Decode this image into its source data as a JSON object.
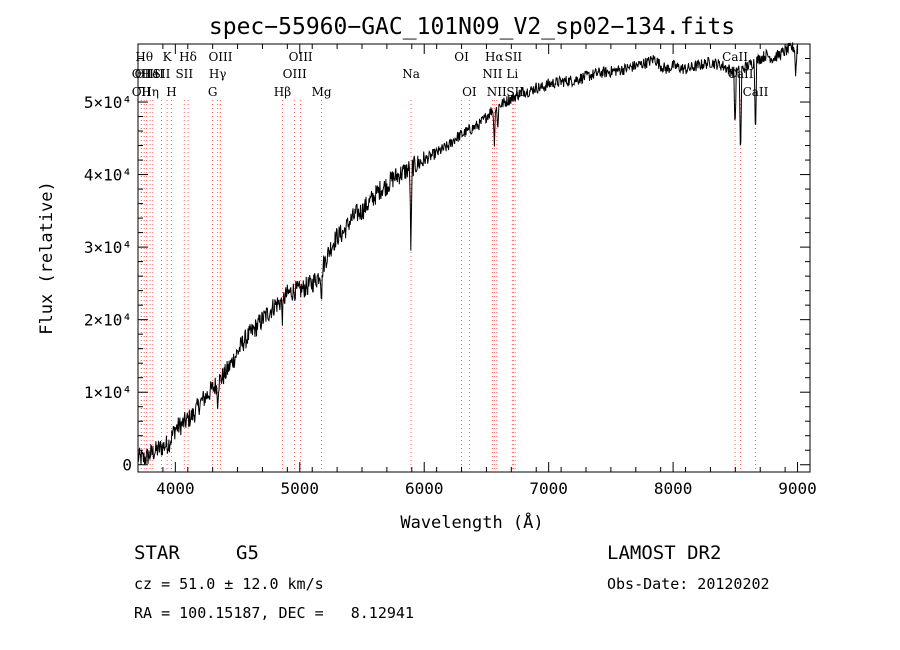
{
  "chart_data": {
    "type": "line",
    "title": "spec−55960−GAC_101N09_V2_sp02−134.fits",
    "xlabel": "Wavelength (Å)",
    "ylabel": "Flux (relative)",
    "xlim": [
      3700,
      9100
    ],
    "ylim": [
      -1000,
      58000
    ],
    "x_ticks": [
      4000,
      5000,
      6000,
      7000,
      8000,
      9000
    ],
    "y_ticks": [
      0,
      10000,
      20000,
      30000,
      40000,
      50000
    ],
    "y_tick_labels": [
      "0",
      "1×10⁴",
      "2×10⁴",
      "3×10⁴",
      "4×10⁴",
      "5×10⁴"
    ],
    "grid": false,
    "line_color": "#000000",
    "marker_color": "#ff6060",
    "series": [
      {
        "x": [
          3700,
          3750,
          3800,
          3850,
          3900,
          3950,
          4000,
          4050,
          4100,
          4150,
          4200,
          4250,
          4300,
          4350,
          4400,
          4450,
          4500,
          4550,
          4600,
          4650,
          4700,
          4750,
          4800,
          4850,
          4900,
          4950,
          5000,
          5050,
          5100,
          5150,
          5200,
          5250,
          5300,
          5350,
          5400,
          5450,
          5500,
          5550,
          5600,
          5650,
          5700,
          5750,
          5800,
          5850,
          5900,
          5950,
          6000,
          6050,
          6100,
          6150,
          6200,
          6250,
          6300,
          6350,
          6400,
          6450,
          6500,
          6550,
          6600,
          6650,
          6700,
          6750,
          6800,
          6850,
          6900,
          6950,
          7000,
          7100,
          7200,
          7300,
          7400,
          7500,
          7600,
          7700,
          7800,
          7850,
          7900,
          7950,
          8000,
          8100,
          8200,
          8300,
          8400,
          8450,
          8500,
          8550,
          8600,
          8650,
          8700,
          8750,
          8800,
          8850,
          8900,
          8950,
          9000
        ],
        "y": [
          1000,
          800,
          1500,
          2000,
          2500,
          3000,
          5000,
          5500,
          6200,
          7000,
          8500,
          9500,
          10500,
          11500,
          12500,
          14000,
          15500,
          17000,
          18000,
          19000,
          20000,
          21000,
          22000,
          22500,
          23500,
          24000,
          24000,
          24500,
          25000,
          26000,
          28000,
          30000,
          31500,
          32000,
          33500,
          34500,
          35000,
          36000,
          37000,
          38000,
          38500,
          39500,
          40000,
          40500,
          41000,
          41500,
          42000,
          42500,
          43000,
          43500,
          44000,
          45000,
          45500,
          46000,
          46500,
          47000,
          48000,
          49000,
          49500,
          50000,
          50500,
          51000,
          51500,
          51500,
          52000,
          52000,
          52500,
          52800,
          53000,
          53500,
          54000,
          54200,
          54500,
          55000,
          55500,
          56000,
          55000,
          54500,
          55000,
          54500,
          55000,
          55500,
          55000,
          54500,
          54000,
          54500,
          55000,
          55500,
          56000,
          56500,
          56000,
          56500,
          57000,
          57500,
          57500
        ]
      }
    ],
    "absorption_dips": [
      {
        "x": 5893,
        "depth": 12000
      },
      {
        "x": 5175,
        "depth": 4000
      },
      {
        "x": 4861,
        "depth": 2500
      },
      {
        "x": 4340,
        "depth": 2500
      },
      {
        "x": 6563,
        "depth": 5000
      },
      {
        "x": 6590,
        "depth": 3000
      },
      {
        "x": 8498,
        "depth": 8000
      },
      {
        "x": 8542,
        "depth": 13000
      },
      {
        "x": 8662,
        "depth": 10000
      },
      {
        "x": 8985,
        "depth": 4000
      }
    ],
    "line_markers": [
      {
        "x": 3727,
        "label": "OII",
        "row": 2
      },
      {
        "x": 3727,
        "label": "OII",
        "row": 3
      },
      {
        "x": 3750,
        "label": "Hθ",
        "row": 1
      },
      {
        "x": 3770,
        "label": "OIII",
        "row": 2
      },
      {
        "x": 3797,
        "label": "Hη",
        "row": 3
      },
      {
        "x": 3819,
        "label": "HeI",
        "row": 2
      },
      {
        "x": 3889,
        "label": "SII",
        "row": 2
      },
      {
        "x": 3934,
        "label": "K",
        "row": 1
      },
      {
        "x": 3969,
        "label": "H",
        "row": 3
      },
      {
        "x": 4072,
        "label": "SII",
        "row": 2
      },
      {
        "x": 4102,
        "label": "Hδ",
        "row": 1
      },
      {
        "x": 4300,
        "label": "G",
        "row": 3
      },
      {
        "x": 4340,
        "label": "Hγ",
        "row": 2
      },
      {
        "x": 4363,
        "label": "OIII",
        "row": 1
      },
      {
        "x": 4861,
        "label": "Hβ",
        "row": 3
      },
      {
        "x": 4959,
        "label": "OIII",
        "row": 2
      },
      {
        "x": 5007,
        "label": "OIII",
        "row": 1
      },
      {
        "x": 5175,
        "label": "Mg",
        "row": 3
      },
      {
        "x": 5894,
        "label": "Na",
        "row": 2
      },
      {
        "x": 6300,
        "label": "OI",
        "row": 1
      },
      {
        "x": 6363,
        "label": "OI",
        "row": 3
      },
      {
        "x": 6548,
        "label": "NII",
        "row": 2
      },
      {
        "x": 6563,
        "label": "Hα",
        "row": 1
      },
      {
        "x": 6583,
        "label": "NII",
        "row": 3
      },
      {
        "x": 6708,
        "label": "Li",
        "row": 2
      },
      {
        "x": 6716,
        "label": "SII",
        "row": 1
      },
      {
        "x": 6731,
        "label": "SII",
        "row": 3
      },
      {
        "x": 8498,
        "label": "CaII",
        "row": 1
      },
      {
        "x": 8542,
        "label": "CaII",
        "row": 2
      },
      {
        "x": 8662,
        "label": "CaII",
        "row": 3
      }
    ]
  },
  "info": {
    "object_class": "STAR",
    "subclass": "G5",
    "redshift_text": "cz = 51.0 ± 12.0 km/s",
    "coords_text": "RA = 100.15187, DEC =   8.12941",
    "survey": "LAMOST DR2",
    "obs_date": "Obs-Date: 20120202"
  }
}
